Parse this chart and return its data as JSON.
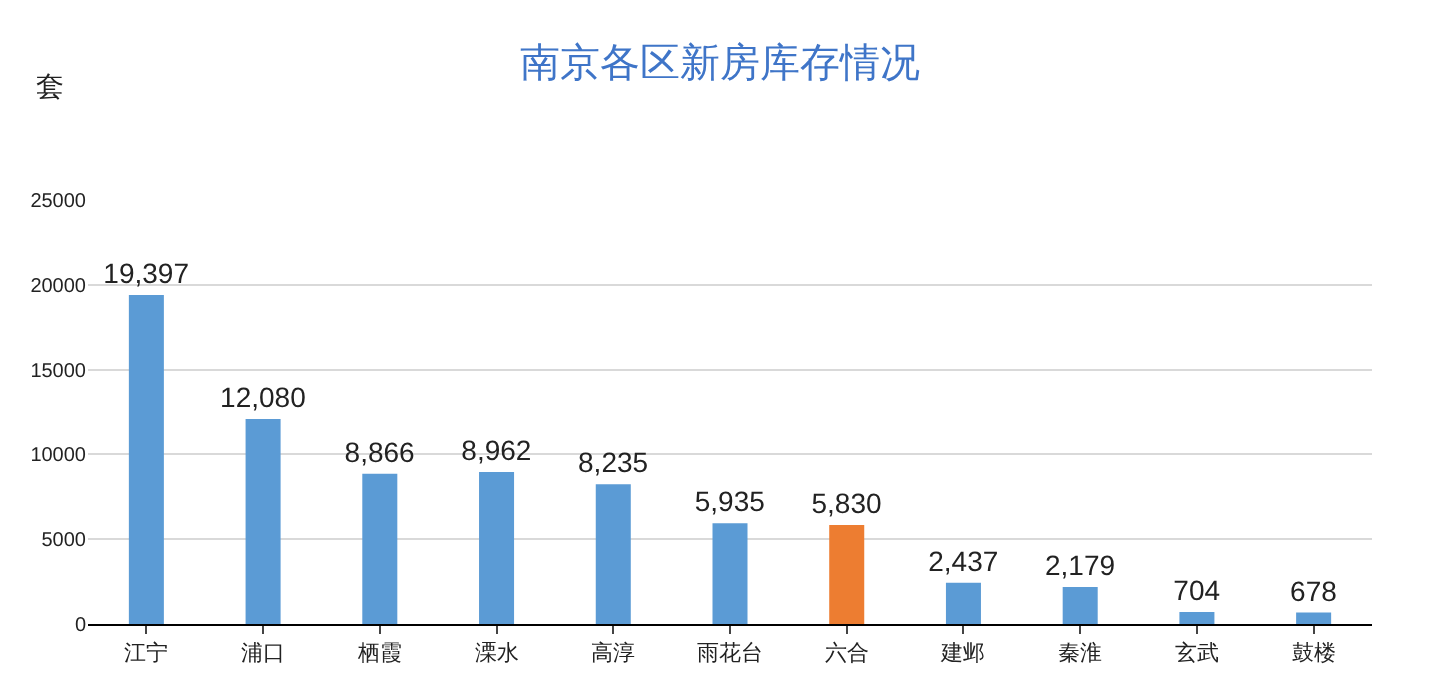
{
  "chart_data": {
    "type": "bar",
    "title": "南京各区新房库存情况",
    "ylabel": "套",
    "categories": [
      "江宁",
      "浦口",
      "栖霞",
      "溧水",
      "高淳",
      "雨花台",
      "六合",
      "建邺",
      "秦淮",
      "玄武",
      "鼓楼"
    ],
    "values": [
      19397,
      12080,
      8866,
      8962,
      8235,
      5935,
      5830,
      2437,
      2179,
      704,
      678
    ],
    "colors": [
      "#5b9bd5",
      "#5b9bd5",
      "#5b9bd5",
      "#5b9bd5",
      "#5b9bd5",
      "#5b9bd5",
      "#ed7d31",
      "#5b9bd5",
      "#5b9bd5",
      "#5b9bd5",
      "#5b9bd5"
    ],
    "value_labels": [
      "19,397",
      "12,080",
      "8,866",
      "8,962",
      "8,235",
      "5,935",
      "5,830",
      "2,437",
      "2,179",
      "704",
      "678"
    ],
    "ylim": [
      0,
      25000
    ],
    "yticks": [
      0,
      5000,
      10000,
      15000,
      20000,
      25000
    ],
    "grid": "y"
  }
}
